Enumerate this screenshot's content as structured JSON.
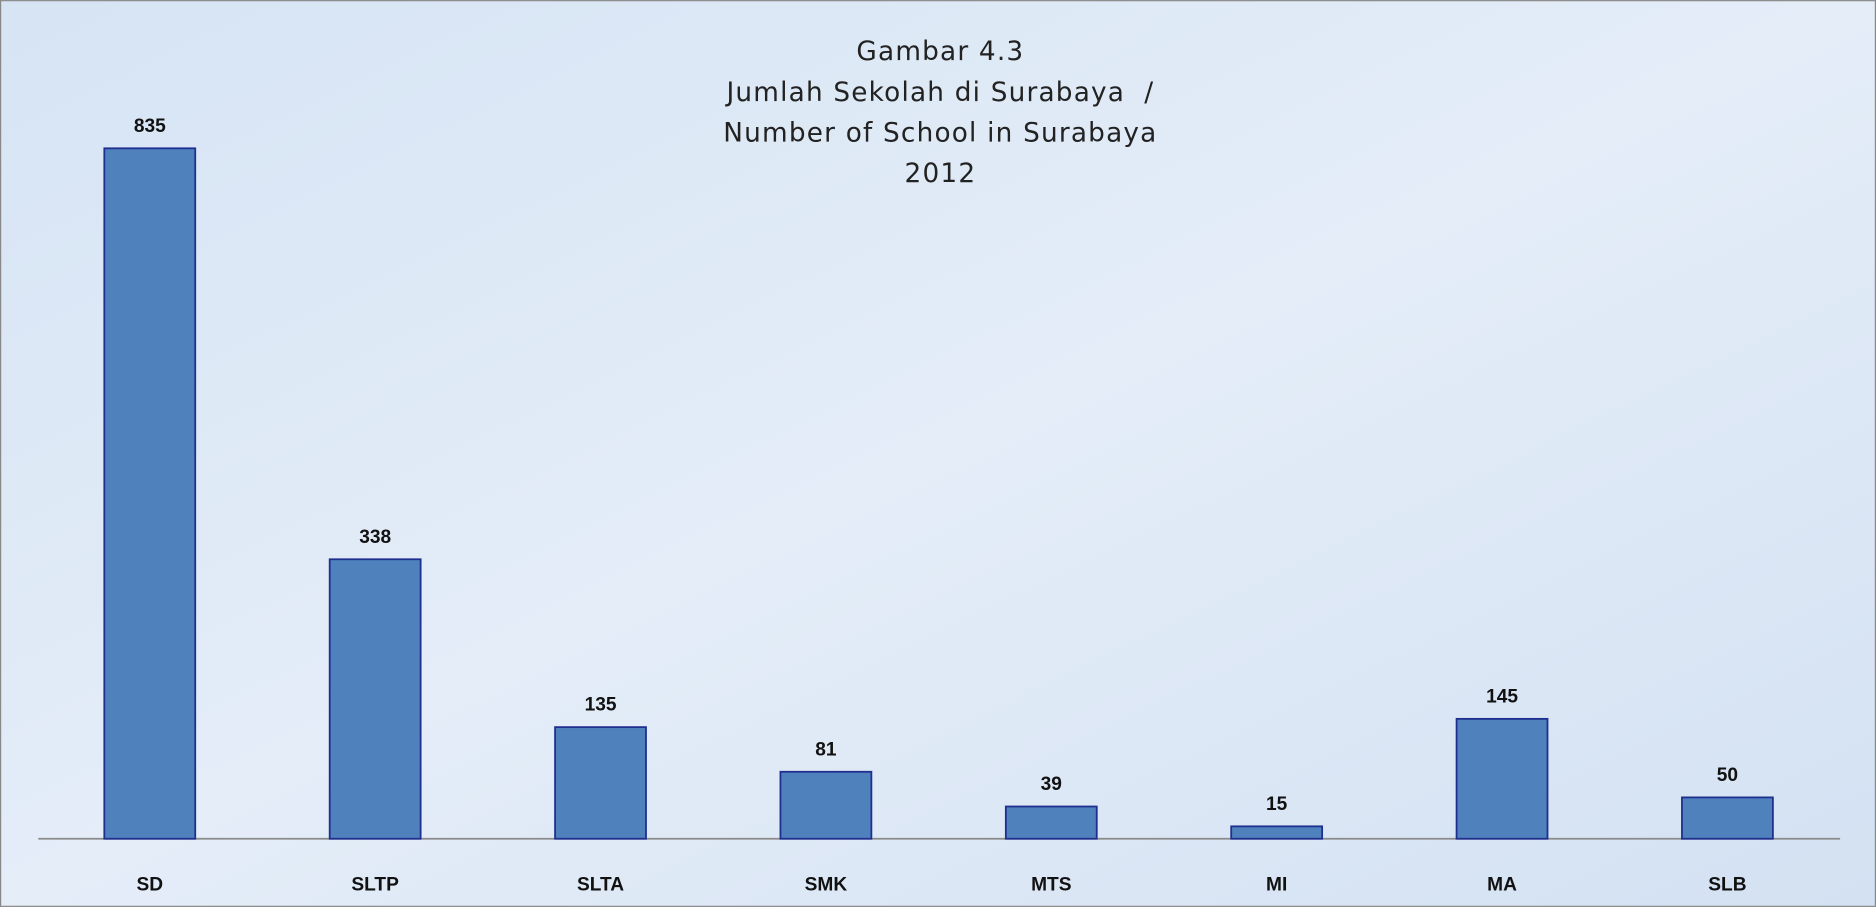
{
  "chart_data": {
    "type": "bar",
    "title": [
      "Gambar 4.3",
      "Jumlah Sekolah di Surabaya  /",
      "Number of School in Surabaya",
      "2012"
    ],
    "categories": [
      "SD",
      "SLTP",
      "SLTA",
      "SMK",
      "MTS",
      "MI",
      "MA",
      "SLB"
    ],
    "values": [
      835,
      338,
      135,
      81,
      39,
      15,
      145,
      50
    ],
    "color": "#4f81bd",
    "ylim": [
      0,
      900
    ]
  }
}
